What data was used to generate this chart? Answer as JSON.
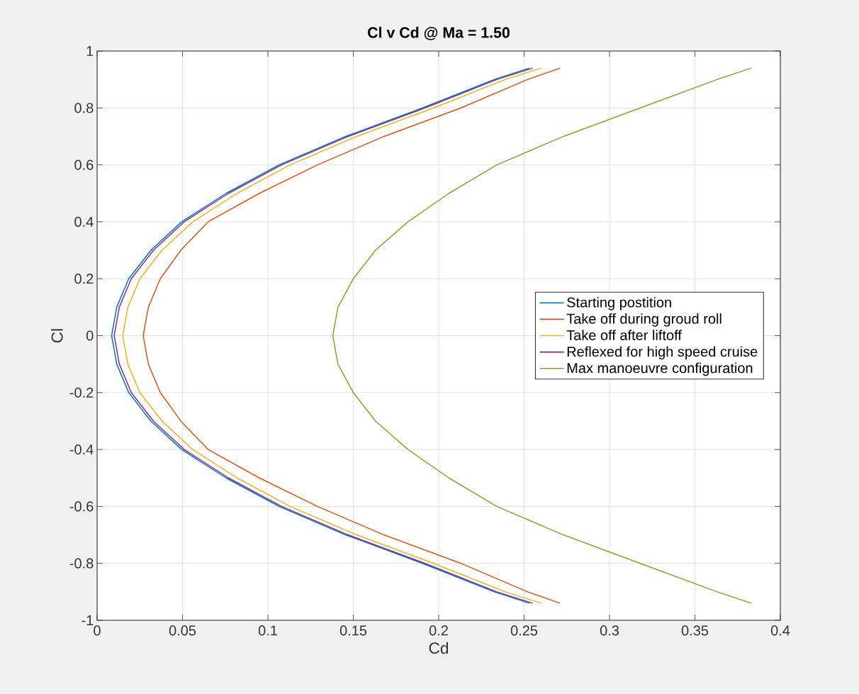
{
  "chart_data": {
    "type": "line",
    "title": "Cl v Cd @ Ma = 1.50",
    "xlabel": "Cd",
    "ylabel": "Cl",
    "xlim": [
      0,
      0.4
    ],
    "ylim": [
      -1,
      1
    ],
    "xticks": [
      0,
      0.05,
      0.1,
      0.15,
      0.2,
      0.25,
      0.3,
      0.35,
      0.4
    ],
    "yticks": [
      -1,
      -0.8,
      -0.6,
      -0.4,
      -0.2,
      0,
      0.2,
      0.4,
      0.6,
      0.8,
      1
    ],
    "grid": true,
    "legend": "right",
    "line_style": "solid",
    "marker": "none",
    "series": [
      {
        "name": "Starting postition",
        "color": "#0072bd",
        "x": [
          0.253,
          0.2325,
          0.1905,
          0.1455,
          0.1065,
          0.0755,
          0.0495,
          0.0315,
          0.0185,
          0.0115,
          0.0085,
          0.0115,
          0.0185,
          0.0315,
          0.0495,
          0.0755,
          0.1065,
          0.1455,
          0.1905,
          0.2325,
          0.253
        ],
        "values": [
          -0.94,
          -0.9,
          -0.8,
          -0.7,
          -0.6,
          -0.5,
          -0.4,
          -0.3,
          -0.2,
          -0.1,
          0,
          0.1,
          0.2,
          0.3,
          0.4,
          0.5,
          0.6,
          0.7,
          0.8,
          0.9,
          0.94
        ]
      },
      {
        "name": "Take off during groud roll",
        "color": "#d95319",
        "x": [
          0.271,
          0.252,
          0.213,
          0.168,
          0.129,
          0.095,
          0.065,
          0.049,
          0.037,
          0.03,
          0.027,
          0.03,
          0.037,
          0.049,
          0.065,
          0.095,
          0.129,
          0.168,
          0.213,
          0.252,
          0.271
        ],
        "values": [
          -0.94,
          -0.9,
          -0.8,
          -0.7,
          -0.6,
          -0.5,
          -0.4,
          -0.3,
          -0.2,
          -0.1,
          0,
          0.1,
          0.2,
          0.3,
          0.4,
          0.5,
          0.6,
          0.7,
          0.8,
          0.9,
          0.94
        ]
      },
      {
        "name": "Take off after liftoff",
        "color": "#edb120",
        "x": [
          0.26,
          0.239,
          0.197,
          0.152,
          0.113,
          0.082,
          0.056,
          0.038,
          0.025,
          0.018,
          0.015,
          0.018,
          0.025,
          0.038,
          0.056,
          0.082,
          0.113,
          0.152,
          0.197,
          0.239,
          0.26
        ],
        "values": [
          -0.94,
          -0.9,
          -0.8,
          -0.7,
          -0.6,
          -0.5,
          -0.4,
          -0.3,
          -0.2,
          -0.1,
          0,
          0.1,
          0.2,
          0.3,
          0.4,
          0.5,
          0.6,
          0.7,
          0.8,
          0.9,
          0.94
        ]
      },
      {
        "name": "Reflexed for high speed cruise",
        "color": "#7e2f8e",
        "x": [
          0.255,
          0.234,
          0.192,
          0.147,
          0.108,
          0.077,
          0.051,
          0.033,
          0.02,
          0.013,
          0.01,
          0.013,
          0.02,
          0.033,
          0.051,
          0.077,
          0.108,
          0.147,
          0.192,
          0.234,
          0.255
        ],
        "values": [
          -0.94,
          -0.9,
          -0.8,
          -0.7,
          -0.6,
          -0.5,
          -0.4,
          -0.3,
          -0.2,
          -0.1,
          0,
          0.1,
          0.2,
          0.3,
          0.4,
          0.5,
          0.6,
          0.7,
          0.8,
          0.9,
          0.94
        ]
      },
      {
        "name": "Max manoeuvre configuration",
        "color": "#77ac30",
        "x": [
          0.383,
          0.363,
          0.318,
          0.273,
          0.234,
          0.206,
          0.182,
          0.163,
          0.15,
          0.141,
          0.138,
          0.141,
          0.15,
          0.163,
          0.182,
          0.206,
          0.234,
          0.273,
          0.318,
          0.363,
          0.383
        ],
        "values": [
          -0.94,
          -0.9,
          -0.8,
          -0.7,
          -0.6,
          -0.5,
          -0.4,
          -0.3,
          -0.2,
          -0.1,
          0,
          0.1,
          0.2,
          0.3,
          0.4,
          0.5,
          0.6,
          0.7,
          0.8,
          0.9,
          0.94
        ]
      }
    ]
  }
}
